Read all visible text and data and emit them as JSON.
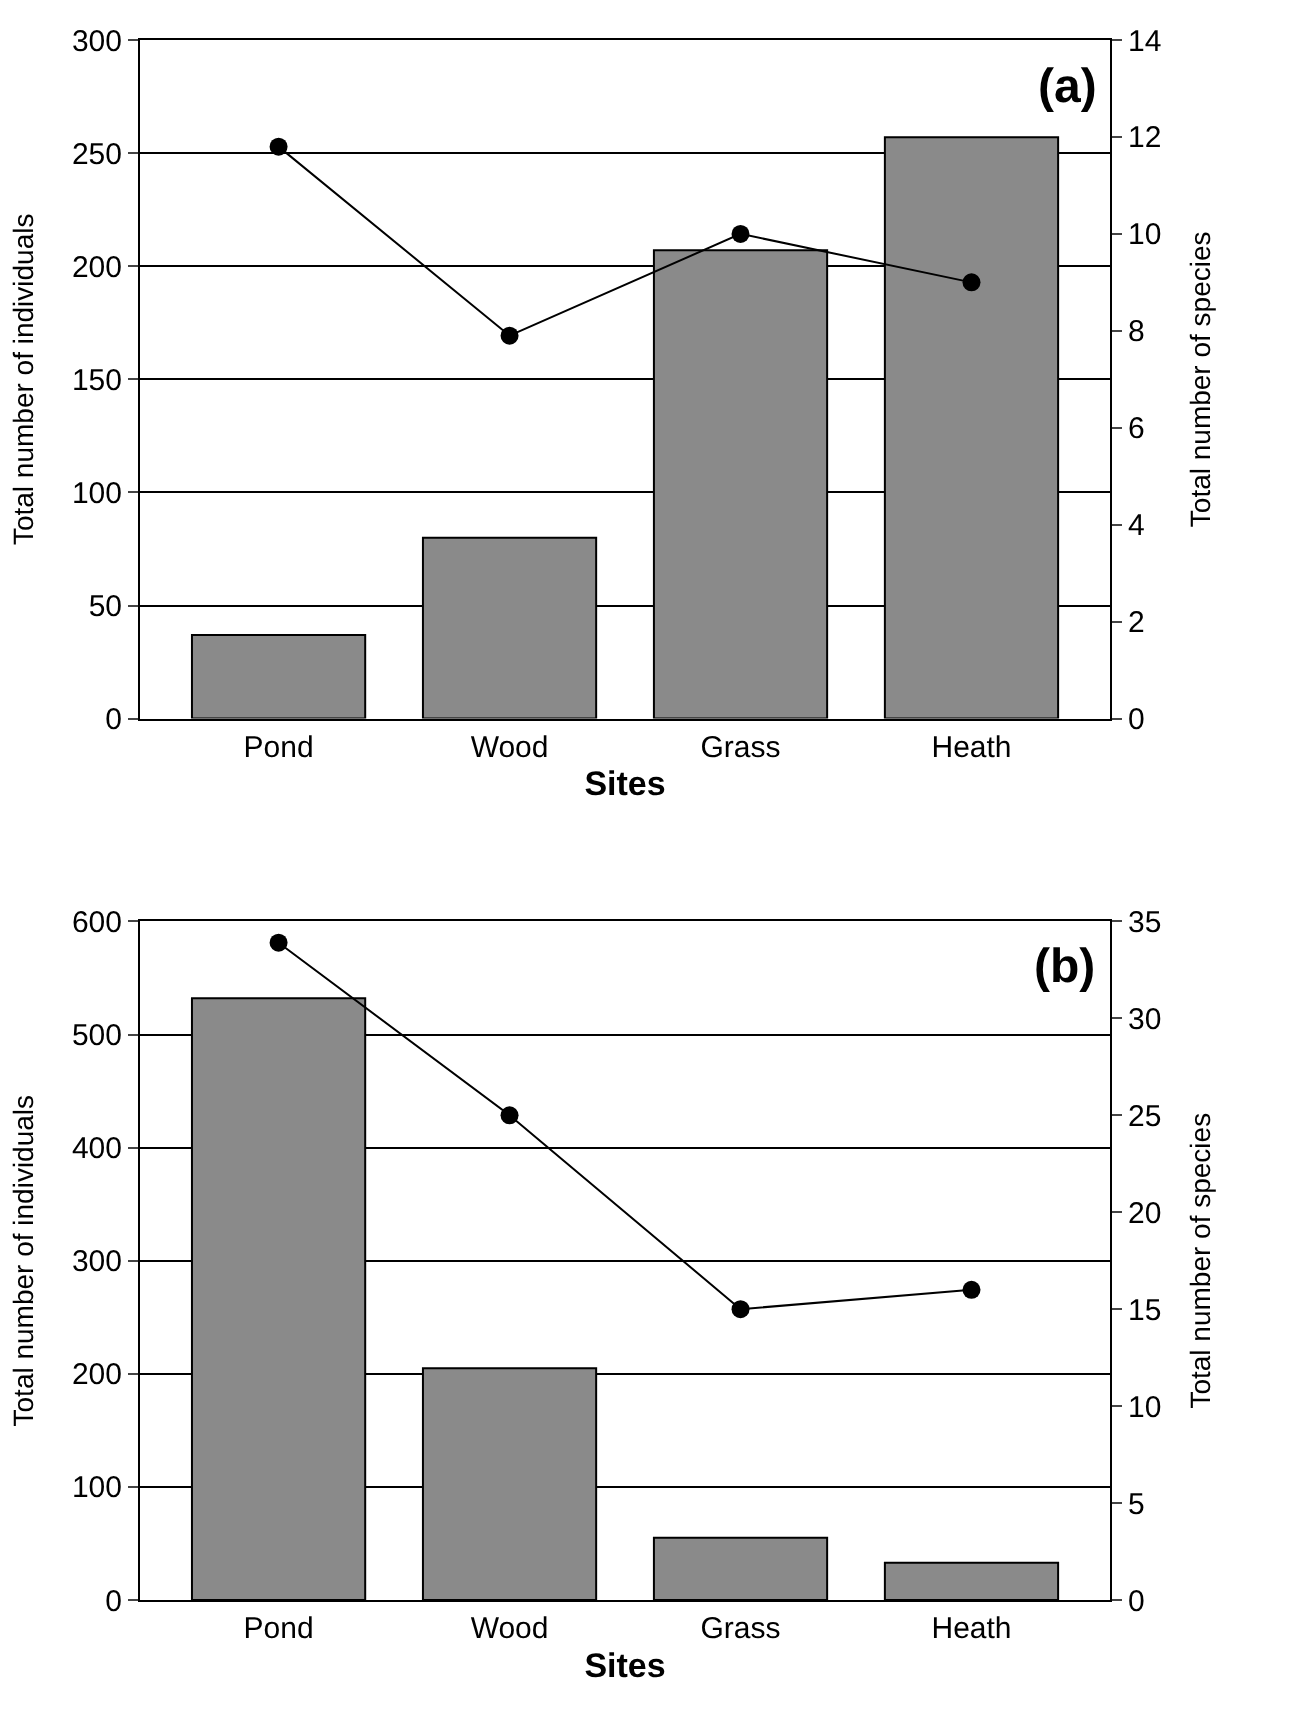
{
  "chart_data": [
    {
      "type": "bar",
      "categories": [
        "Pond",
        "Wood",
        "Grass",
        "Heath"
      ],
      "xlabel": "Sites",
      "ylabel": "Total number of individuals",
      "y2label": "Total number of species",
      "annotations": [
        "(a)"
      ],
      "series": [
        {
          "color": "#8a8a8a",
          "values": [
            37,
            80,
            207,
            257
          ]
        },
        {
          "type": "line",
          "axis": "y2",
          "color": "#000000",
          "marker": "circle",
          "line_style": "solid",
          "values": [
            11.8,
            7.9,
            10.0,
            9.0
          ]
        }
      ],
      "ylim": [
        0,
        300
      ],
      "yticks": [
        0,
        50,
        100,
        150,
        200,
        250,
        300
      ],
      "y2lim": [
        0,
        14
      ],
      "y2ticks": [
        0,
        2,
        4,
        6,
        8,
        10,
        12,
        14
      ],
      "grid": "y"
    },
    {
      "type": "bar",
      "categories": [
        "Pond",
        "Wood",
        "Grass",
        "Heath"
      ],
      "xlabel": "Sites",
      "ylabel": "Total number of individuals",
      "y2label": "Total number of species",
      "annotations": [
        "(b)"
      ],
      "series": [
        {
          "color": "#8a8a8a",
          "values": [
            532,
            205,
            55,
            33
          ]
        },
        {
          "type": "line",
          "axis": "y2",
          "color": "#000000",
          "marker": "circle",
          "line_style": "solid",
          "values": [
            33.9,
            25.0,
            15.0,
            16.0
          ]
        }
      ],
      "ylim": [
        0,
        600
      ],
      "yticks": [
        0,
        100,
        200,
        300,
        400,
        500,
        600
      ],
      "y2lim": [
        0,
        35
      ],
      "y2ticks": [
        0,
        5,
        10,
        15,
        20,
        25,
        30,
        35
      ],
      "grid": "y"
    }
  ]
}
